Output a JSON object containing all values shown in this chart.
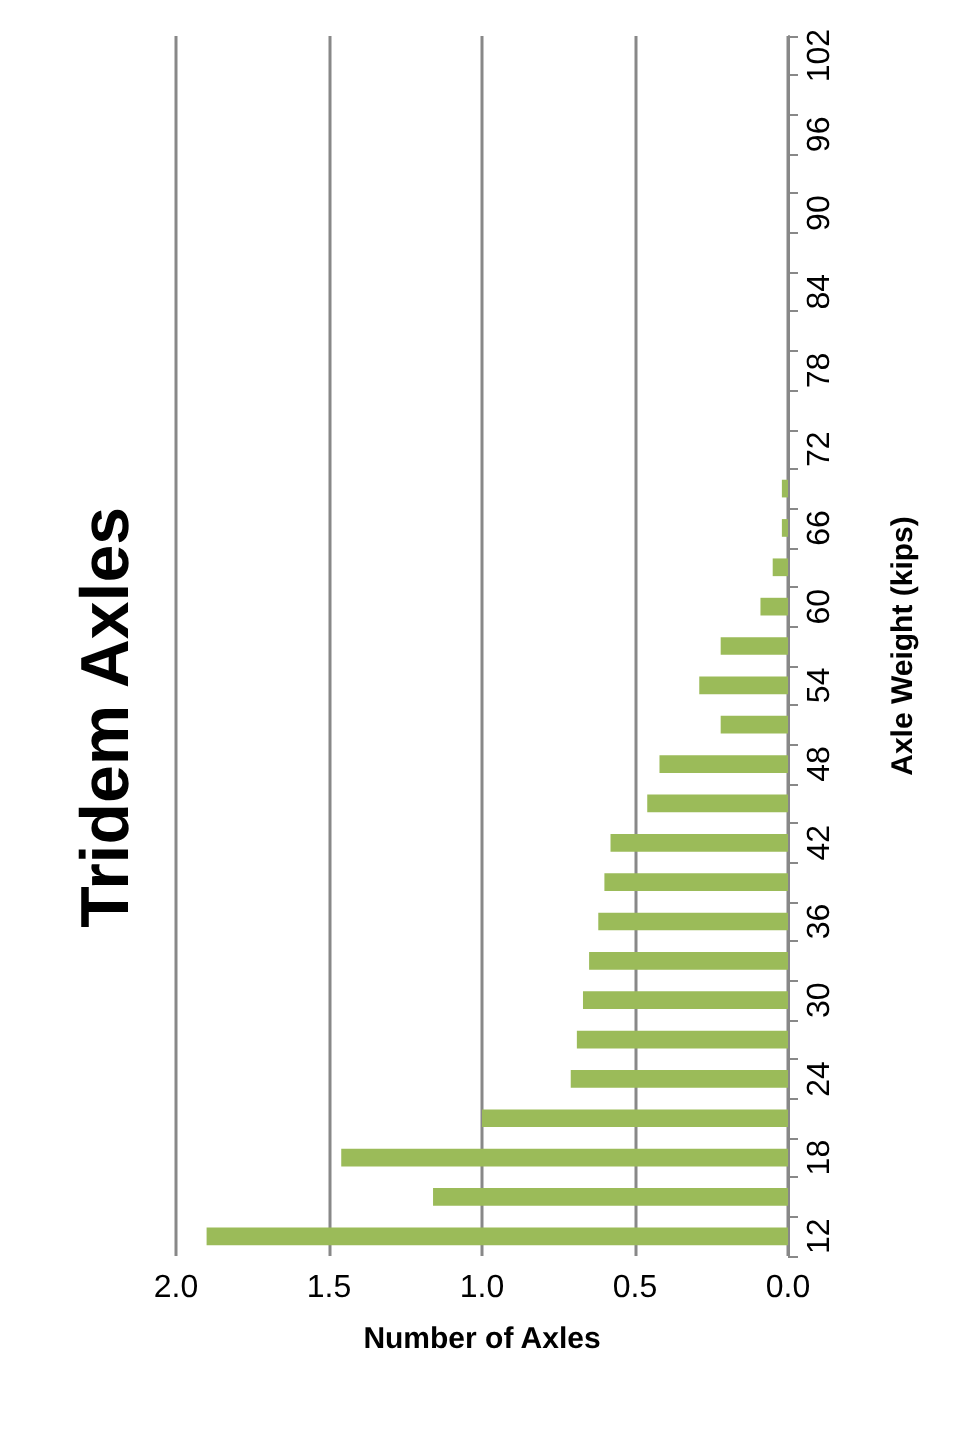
{
  "chart_data": {
    "type": "bar",
    "orientation": "horizontal",
    "title": "Tridem Axles",
    "xlabel": "Number of Axles",
    "ylabel": "Axle Weight (kips)",
    "categories": [
      "102",
      null,
      "96",
      null,
      "90",
      null,
      "84",
      null,
      "78",
      null,
      "72",
      null,
      "66",
      null,
      "60",
      null,
      "54",
      null,
      "48",
      null,
      "42",
      null,
      "36",
      null,
      "30",
      null,
      "24",
      null,
      "18",
      null,
      "12"
    ],
    "series": [
      {
        "color": "#9bbb59",
        "values": [
          0,
          0,
          0,
          0,
          0,
          0,
          0,
          0,
          0,
          0,
          0,
          0.02,
          0.02,
          0.05,
          0.09,
          0.22,
          0.29,
          0.22,
          0.42,
          0.46,
          0.58,
          0.6,
          0.62,
          0.65,
          0.67,
          0.69,
          0.71,
          1.0,
          1.46,
          1.16,
          1.9
        ]
      }
    ],
    "xlim": [
      2.0,
      0.0
    ],
    "xticks": [
      {
        "value": 2,
        "label": "2.0"
      },
      1.5,
      {
        "value": 1,
        "label": "1.0"
      },
      0.5,
      {
        "value": 0,
        "label": "0.0"
      }
    ],
    "grid": "x"
  }
}
